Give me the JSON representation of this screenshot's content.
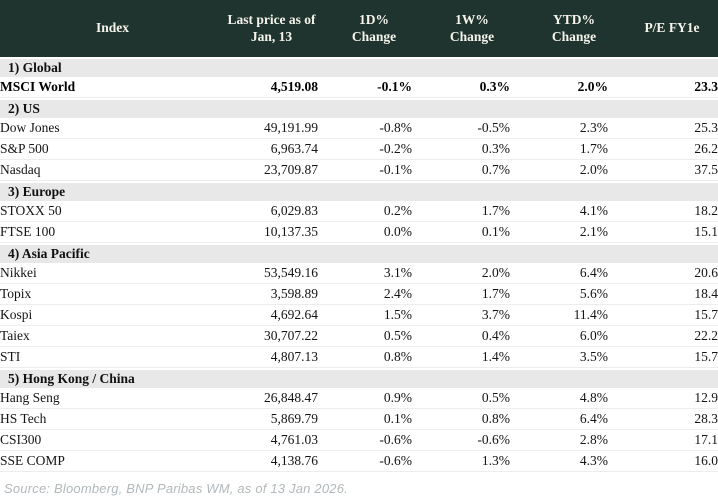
{
  "header": {
    "index": "Index",
    "price": "Last price as of\nJan, 13",
    "d1": "1D% Change",
    "w1": "1W% Change",
    "ytd": "YTD% Change",
    "pe": "P/E FY1e"
  },
  "colors": {
    "header_bg": "#1f342e",
    "header_text": "#f5f3ec",
    "section_bg": "#e7e8e7",
    "positive": "#0a8f1c",
    "negative": "#c00327"
  },
  "sections": [
    {
      "label": "1) Global",
      "rows": [
        {
          "name": "MSCI World",
          "bold": true,
          "price": "4,519.08",
          "d1": {
            "v": "-0.1%",
            "sign": "down"
          },
          "w1": {
            "v": "0.3%",
            "sign": "up"
          },
          "ytd": {
            "v": "2.0%",
            "sign": "up"
          },
          "pe": "23.3"
        }
      ]
    },
    {
      "label": "2) US",
      "rows": [
        {
          "name": "Dow Jones",
          "bold": false,
          "price": "49,191.99",
          "d1": {
            "v": "-0.8%",
            "sign": "down"
          },
          "w1": {
            "v": "-0.5%",
            "sign": "down"
          },
          "ytd": {
            "v": "2.3%",
            "sign": "up"
          },
          "pe": "25.3"
        },
        {
          "name": "S&P 500",
          "bold": false,
          "price": "6,963.74",
          "d1": {
            "v": "-0.2%",
            "sign": "down"
          },
          "w1": {
            "v": "0.3%",
            "sign": "up"
          },
          "ytd": {
            "v": "1.7%",
            "sign": "up"
          },
          "pe": "26.2"
        },
        {
          "name": "Nasdaq",
          "bold": false,
          "price": "23,709.87",
          "d1": {
            "v": "-0.1%",
            "sign": "down"
          },
          "w1": {
            "v": "0.7%",
            "sign": "up"
          },
          "ytd": {
            "v": "2.0%",
            "sign": "up"
          },
          "pe": "37.5"
        }
      ]
    },
    {
      "label": "3) Europe",
      "rows": [
        {
          "name": "STOXX 50",
          "bold": false,
          "price": "6,029.83",
          "d1": {
            "v": "0.2%",
            "sign": "up"
          },
          "w1": {
            "v": "1.7%",
            "sign": "up"
          },
          "ytd": {
            "v": "4.1%",
            "sign": "up"
          },
          "pe": "18.2"
        },
        {
          "name": "FTSE 100",
          "bold": false,
          "price": "10,137.35",
          "d1": {
            "v": "0.0%",
            "sign": "down"
          },
          "w1": {
            "v": "0.1%",
            "sign": "up"
          },
          "ytd": {
            "v": "2.1%",
            "sign": "up"
          },
          "pe": "15.1"
        }
      ]
    },
    {
      "label": "4) Asia Pacific",
      "rows": [
        {
          "name": "Nikkei",
          "bold": false,
          "price": "53,549.16",
          "d1": {
            "v": "3.1%",
            "sign": "up"
          },
          "w1": {
            "v": "2.0%",
            "sign": "up"
          },
          "ytd": {
            "v": "6.4%",
            "sign": "up"
          },
          "pe": "20.6"
        },
        {
          "name": "Topix",
          "bold": false,
          "price": "3,598.89",
          "d1": {
            "v": "2.4%",
            "sign": "up"
          },
          "w1": {
            "v": "1.7%",
            "sign": "up"
          },
          "ytd": {
            "v": "5.6%",
            "sign": "up"
          },
          "pe": "18.4"
        },
        {
          "name": "Kospi",
          "bold": false,
          "price": "4,692.64",
          "d1": {
            "v": "1.5%",
            "sign": "up"
          },
          "w1": {
            "v": "3.7%",
            "sign": "up"
          },
          "ytd": {
            "v": "11.4%",
            "sign": "up"
          },
          "pe": "15.7"
        },
        {
          "name": "Taiex",
          "bold": false,
          "price": "30,707.22",
          "d1": {
            "v": "0.5%",
            "sign": "up"
          },
          "w1": {
            "v": "0.4%",
            "sign": "up"
          },
          "ytd": {
            "v": "6.0%",
            "sign": "up"
          },
          "pe": "22.2"
        },
        {
          "name": "STI",
          "bold": false,
          "price": "4,807.13",
          "d1": {
            "v": "0.8%",
            "sign": "up"
          },
          "w1": {
            "v": "1.4%",
            "sign": "up"
          },
          "ytd": {
            "v": "3.5%",
            "sign": "up"
          },
          "pe": "15.7"
        }
      ]
    },
    {
      "label": "5) Hong Kong / China",
      "rows": [
        {
          "name": "Hang Seng",
          "bold": false,
          "price": "26,848.47",
          "d1": {
            "v": "0.9%",
            "sign": "up"
          },
          "w1": {
            "v": "0.5%",
            "sign": "up"
          },
          "ytd": {
            "v": "4.8%",
            "sign": "up"
          },
          "pe": "12.9"
        },
        {
          "name": "HS Tech",
          "bold": false,
          "price": "5,869.79",
          "d1": {
            "v": "0.1%",
            "sign": "up"
          },
          "w1": {
            "v": "0.8%",
            "sign": "up"
          },
          "ytd": {
            "v": "6.4%",
            "sign": "up"
          },
          "pe": "28.3"
        },
        {
          "name": "CSI300",
          "bold": false,
          "price": "4,761.03",
          "d1": {
            "v": "-0.6%",
            "sign": "down"
          },
          "w1": {
            "v": "-0.6%",
            "sign": "down"
          },
          "ytd": {
            "v": "2.8%",
            "sign": "up"
          },
          "pe": "17.1"
        },
        {
          "name": "SSE COMP",
          "bold": false,
          "price": "4,138.76",
          "d1": {
            "v": "-0.6%",
            "sign": "down"
          },
          "w1": {
            "v": "1.3%",
            "sign": "up"
          },
          "ytd": {
            "v": "4.3%",
            "sign": "up"
          },
          "pe": "16.0"
        }
      ]
    }
  ],
  "footer": {
    "source": "Source: Bloomberg, BNP Paribas WM, as of 13 Jan 2026."
  }
}
